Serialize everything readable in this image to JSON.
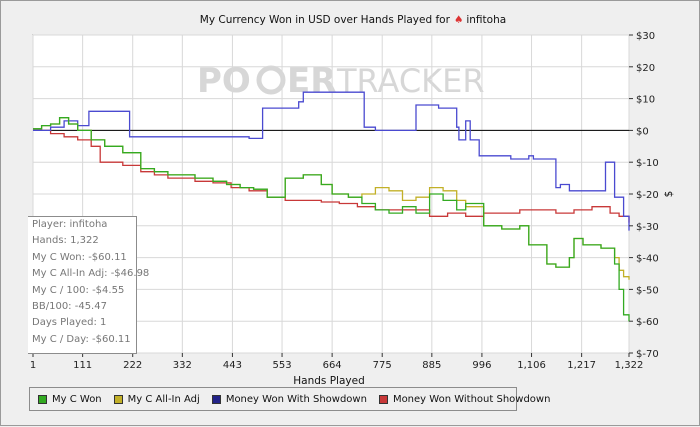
{
  "colors": {
    "my_c_won": "#33aa22",
    "my_c_allin_adj": "#c2b028",
    "money_with_showdown": "#4a4ad0",
    "money_without_showdown": "#c83838",
    "zero_line": "#000000",
    "plot_bg": "#ffffff",
    "grid": "#d8d8d8",
    "watermark": "#d7d7d7",
    "logo_accent": "#e05030"
  },
  "watermark": {
    "left": "PO",
    "right": "ER",
    "tail": "TRACKER"
  },
  "stats": {
    "player": "Player: infitoha",
    "hands": "Hands: 1,322",
    "my_c_won": "My C Won: -$60.11",
    "allin_adj": "My C All-In Adj: -$46.98",
    "per100": "My C / 100: -$4.55",
    "bb100": "BB/100: -45.47",
    "days": "Days Played: 1",
    "per_day": "My C / Day: -$60.11"
  },
  "chart_data": {
    "type": "line",
    "title": "My Currency Won in USD over Hands Played for",
    "title_player": "infitoha",
    "xlabel": "Hands Played",
    "ylabel": "$",
    "xlim": [
      1,
      1322
    ],
    "ylim": [
      -70,
      30
    ],
    "x_ticks": [
      1,
      111,
      222,
      332,
      443,
      553,
      664,
      775,
      885,
      996,
      1106,
      1217,
      1322
    ],
    "x_tick_labels": [
      "1",
      "111",
      "222",
      "332",
      "443",
      "553",
      "664",
      "775",
      "885",
      "996",
      "1,106",
      "1,217",
      "1,322"
    ],
    "y_ticks": [
      30,
      20,
      10,
      0,
      -10,
      -20,
      -30,
      -40,
      -50,
      -60,
      -70
    ],
    "y_tick_labels": [
      "$30",
      "$20",
      "$10",
      "$0",
      "$-10",
      "$-20",
      "$-30",
      "$-40",
      "$-50",
      "$-60",
      "$-70"
    ],
    "grid": true,
    "legend_position": "bottom",
    "series": [
      {
        "name": "My C Won",
        "color_key": "my_c_won",
        "x": [
          1,
          20,
          40,
          60,
          80,
          100,
          130,
          160,
          200,
          240,
          270,
          300,
          330,
          360,
          400,
          430,
          460,
          490,
          520,
          560,
          600,
          640,
          664,
          700,
          730,
          760,
          790,
          820,
          850,
          880,
          910,
          940,
          960,
          1000,
          1040,
          1080,
          1100,
          1140,
          1160,
          1190,
          1200,
          1220,
          1240,
          1260,
          1290,
          1300,
          1310,
          1322
        ],
        "y": [
          0.5,
          1.5,
          2,
          4,
          2,
          0,
          -3,
          -5,
          -7,
          -12,
          -13,
          -14,
          -14,
          -15,
          -16,
          -17,
          -18,
          -18.5,
          -21,
          -15,
          -14,
          -17,
          -20,
          -21,
          -23,
          -25,
          -26,
          -24,
          -26,
          -20,
          -22,
          -25,
          -23,
          -30,
          -31,
          -30,
          -36,
          -42,
          -43,
          -40,
          -34,
          -36,
          -36,
          -37,
          -42,
          -50,
          -58,
          -60.11
        ]
      },
      {
        "name": "My C All-In Adj",
        "color_key": "my_c_allin_adj",
        "x": [
          1,
          20,
          40,
          60,
          80,
          100,
          130,
          160,
          200,
          240,
          270,
          300,
          330,
          360,
          400,
          430,
          460,
          490,
          520,
          560,
          600,
          640,
          664,
          700,
          730,
          760,
          790,
          820,
          850,
          880,
          910,
          940,
          960,
          1000,
          1040,
          1080,
          1100,
          1140,
          1160,
          1190,
          1200,
          1220,
          1240,
          1260,
          1290,
          1300,
          1310,
          1322
        ],
        "y": [
          0.5,
          1.5,
          2,
          4,
          2,
          0,
          -3,
          -5,
          -7,
          -12,
          -13,
          -14,
          -14,
          -15,
          -16,
          -17,
          -18,
          -18.5,
          -21,
          -15,
          -14,
          -17,
          -20,
          -21,
          -20,
          -18,
          -19,
          -22,
          -21,
          -18,
          -19,
          -22,
          -24,
          -30,
          -31,
          -30,
          -36,
          -42,
          -43,
          -40,
          -34,
          -36,
          -36,
          -37,
          -40,
          -44,
          -46,
          -46.98
        ]
      },
      {
        "name": "Money Won With Showdown",
        "color_key": "money_with_showdown",
        "x": [
          1,
          40,
          70,
          100,
          125,
          210,
          215,
          440,
          480,
          510,
          550,
          590,
          600,
          680,
          705,
          735,
          760,
          790,
          800,
          835,
          850,
          880,
          900,
          920,
          940,
          945,
          960,
          970,
          990,
          1000,
          1050,
          1060,
          1100,
          1110,
          1140,
          1160,
          1170,
          1190,
          1270,
          1290,
          1300,
          1310,
          1322
        ],
        "y": [
          0,
          1,
          3,
          1.5,
          6,
          6,
          -2,
          -2,
          -2.5,
          7,
          7,
          9,
          12,
          12,
          12,
          1,
          0,
          0,
          0,
          0,
          8,
          8,
          7,
          7,
          1,
          -3,
          3,
          -3,
          -8,
          -8,
          -8,
          -9,
          -8,
          -9,
          -9,
          -18,
          -17,
          -19,
          -10,
          -21,
          -21,
          -27,
          -31.5
        ]
      },
      {
        "name": "Money Won Without Showdown",
        "color_key": "money_won_without_showdown",
        "x": [
          1,
          40,
          70,
          100,
          130,
          150,
          200,
          240,
          270,
          300,
          330,
          360,
          400,
          440,
          480,
          520,
          560,
          600,
          640,
          680,
          720,
          760,
          800,
          840,
          880,
          920,
          960,
          1000,
          1040,
          1080,
          1120,
          1160,
          1200,
          1240,
          1280,
          1300,
          1322
        ],
        "y": [
          0,
          -1,
          -2,
          -3,
          -5,
          -10,
          -11,
          -13,
          -14,
          -15,
          -15,
          -16,
          -16.5,
          -18,
          -19,
          -21,
          -22,
          -22,
          -22.5,
          -23,
          -24,
          -25,
          -25,
          -25,
          -27,
          -26,
          -27,
          -26,
          -26,
          -25,
          -25,
          -26,
          -25,
          -24,
          -26,
          -27,
          -29
        ]
      }
    ]
  }
}
